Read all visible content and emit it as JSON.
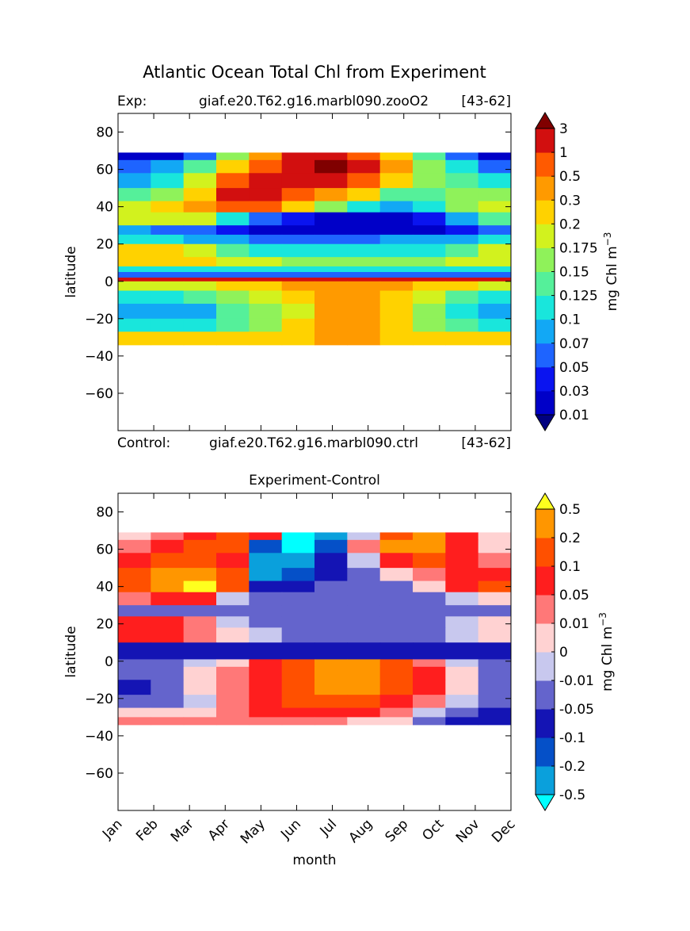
{
  "figure": {
    "title": "Atlantic Ocean Total Chl from Experiment",
    "exp_label": "Exp:",
    "exp_name": "giaf.e20.T62.g16.marbl090.zooO2",
    "exp_years": "[43-62]",
    "ctrl_label": "Control:",
    "ctrl_name": "giaf.e20.T62.g16.marbl090.ctrl",
    "ctrl_years": "[43-62]",
    "diff_title": "Experiment-Control"
  },
  "chart_data": [
    {
      "type": "heatmap",
      "title": "Atlantic Ocean Total Chl from Experiment",
      "subtitle": "giaf.e20.T62.g16.marbl090.zooO2 [43-62]",
      "xlabel": "",
      "ylabel": "latitude",
      "x_range_months": [
        1,
        12
      ],
      "ylim": [
        -80,
        90
      ],
      "yticks": [
        80,
        60,
        40,
        20,
        0,
        -20,
        -40,
        -60
      ],
      "data_lat_range": [
        -34,
        69
      ],
      "colorbar": {
        "label": "mg Chl m",
        "label_exponent": "−3",
        "levels": [
          "0.01",
          "0.03",
          "0.05",
          "0.07",
          "0.1",
          "0.125",
          "0.15",
          "0.175",
          "0.2",
          "0.3",
          "0.5",
          "1",
          "3"
        ],
        "colors": [
          "#000080",
          "#0000c8",
          "#0a14f0",
          "#1e64ff",
          "#12a8f5",
          "#19e6dc",
          "#55f09a",
          "#8ff25a",
          "#d2f21e",
          "#ffd200",
          "#ff9a00",
          "#ff5a00",
          "#d20f0f",
          "#800000"
        ],
        "extend": "both"
      },
      "lat_bands": [
        {
          "lat": [
            65,
            69
          ],
          "values": [
            1,
            1,
            3,
            7,
            10,
            12,
            12,
            11,
            9,
            6,
            3,
            1
          ]
        },
        {
          "lat": [
            58,
            65
          ],
          "values": [
            3,
            4,
            6,
            9,
            11,
            12,
            13,
            12,
            10,
            7,
            5,
            3
          ]
        },
        {
          "lat": [
            50,
            58
          ],
          "values": [
            4,
            5,
            8,
            11,
            12,
            12,
            12,
            11,
            9,
            7,
            6,
            5
          ]
        },
        {
          "lat": [
            43,
            50
          ],
          "values": [
            6,
            7,
            9,
            12,
            12,
            11,
            10,
            9,
            6,
            6,
            7,
            7
          ]
        },
        {
          "lat": [
            37,
            43
          ],
          "values": [
            8,
            9,
            10,
            11,
            11,
            9,
            7,
            5,
            4,
            5,
            7,
            8
          ]
        },
        {
          "lat": [
            30,
            37
          ],
          "values": [
            8,
            8,
            8,
            5,
            3,
            2,
            1,
            1,
            1,
            2,
            4,
            6
          ]
        },
        {
          "lat": [
            25,
            30
          ],
          "values": [
            4,
            3,
            3,
            2,
            1,
            1,
            1,
            1,
            1,
            1,
            2,
            3
          ]
        },
        {
          "lat": [
            20,
            25
          ],
          "values": [
            5,
            5,
            4,
            4,
            3,
            3,
            3,
            3,
            4,
            4,
            4,
            5
          ]
        },
        {
          "lat": [
            13,
            20
          ],
          "values": [
            9,
            9,
            8,
            6,
            5,
            5,
            5,
            5,
            5,
            5,
            6,
            8
          ]
        },
        {
          "lat": [
            8,
            13
          ],
          "values": [
            9,
            9,
            9,
            8,
            8,
            7,
            7,
            7,
            7,
            7,
            8,
            8
          ]
        },
        {
          "lat": [
            5,
            8
          ],
          "values": [
            5,
            5,
            5,
            5,
            5,
            5,
            5,
            5,
            5,
            5,
            5,
            5
          ]
        },
        {
          "lat": [
            2,
            5
          ],
          "values": [
            3,
            3,
            3,
            3,
            3,
            3,
            3,
            3,
            3,
            3,
            3,
            3
          ]
        },
        {
          "lat": [
            0,
            2
          ],
          "values": [
            12,
            12,
            12,
            12,
            12,
            12,
            12,
            12,
            12,
            12,
            12,
            12
          ]
        },
        {
          "lat": [
            -5,
            0
          ],
          "values": [
            8,
            8,
            8,
            9,
            9,
            10,
            10,
            10,
            10,
            9,
            9,
            8
          ]
        },
        {
          "lat": [
            -12,
            -5
          ],
          "values": [
            5,
            5,
            6,
            7,
            8,
            9,
            10,
            10,
            9,
            8,
            6,
            5
          ]
        },
        {
          "lat": [
            -20,
            -12
          ],
          "values": [
            4,
            4,
            4,
            6,
            7,
            8,
            10,
            10,
            9,
            7,
            5,
            4
          ]
        },
        {
          "lat": [
            -27,
            -20
          ],
          "values": [
            5,
            5,
            5,
            6,
            7,
            9,
            10,
            10,
            9,
            7,
            6,
            5
          ]
        },
        {
          "lat": [
            -34,
            -27
          ],
          "values": [
            9,
            9,
            9,
            9,
            9,
            9,
            10,
            10,
            9,
            9,
            9,
            9
          ]
        }
      ]
    },
    {
      "type": "heatmap",
      "title": "Experiment-Control",
      "subtitle": "giaf.e20.T62.g16.marbl090.ctrl [43-62]",
      "xlabel": "month",
      "ylabel": "latitude",
      "x_range_months": [
        1,
        12
      ],
      "xtick_labels": [
        "Jan",
        "Feb",
        "Mar",
        "Apr",
        "May",
        "Jun",
        "Jul",
        "Aug",
        "Sep",
        "Oct",
        "Nov",
        "Dec"
      ],
      "ylim": [
        -80,
        90
      ],
      "yticks": [
        80,
        60,
        40,
        20,
        0,
        -20,
        -40,
        -60
      ],
      "data_lat_range": [
        -34,
        69
      ],
      "colorbar": {
        "label": "mg Chl m",
        "label_exponent": "−3",
        "levels": [
          "-0.5",
          "-0.2",
          "-0.1",
          "-0.05",
          "-0.01",
          "0",
          "0.01",
          "0.05",
          "0.1",
          "0.2",
          "0.5"
        ],
        "colors": [
          "#00ffff",
          "#0aa0dc",
          "#0550c8",
          "#1414b4",
          "#6464cc",
          "#c8c8ee",
          "#ffd2d2",
          "#ff7878",
          "#ff1e1e",
          "#ff5000",
          "#ff9600",
          "#ffff1e"
        ],
        "extend": "both"
      },
      "lat_bands": [
        {
          "lat": [
            65,
            69
          ],
          "values": [
            6,
            7,
            8,
            9,
            8,
            0,
            1,
            5,
            9,
            10,
            8,
            6
          ]
        },
        {
          "lat": [
            58,
            65
          ],
          "values": [
            7,
            8,
            9,
            9,
            2,
            0,
            2,
            7,
            10,
            10,
            8,
            6
          ]
        },
        {
          "lat": [
            50,
            58
          ],
          "values": [
            8,
            9,
            9,
            8,
            1,
            1,
            3,
            5,
            8,
            9,
            8,
            7
          ]
        },
        {
          "lat": [
            43,
            50
          ],
          "values": [
            9,
            10,
            10,
            9,
            1,
            2,
            3,
            4,
            6,
            7,
            8,
            8
          ]
        },
        {
          "lat": [
            37,
            43
          ],
          "values": [
            9,
            10,
            11,
            9,
            3,
            3,
            4,
            4,
            4,
            6,
            8,
            9
          ]
        },
        {
          "lat": [
            30,
            37
          ],
          "values": [
            7,
            8,
            8,
            5,
            4,
            4,
            4,
            4,
            4,
            4,
            5,
            6
          ]
        },
        {
          "lat": [
            24,
            30
          ],
          "values": [
            4,
            4,
            4,
            4,
            4,
            4,
            4,
            4,
            4,
            4,
            4,
            4
          ]
        },
        {
          "lat": [
            18,
            24
          ],
          "values": [
            8,
            8,
            7,
            5,
            4,
            4,
            4,
            4,
            4,
            4,
            5,
            6
          ]
        },
        {
          "lat": [
            10,
            18
          ],
          "values": [
            8,
            8,
            7,
            6,
            5,
            4,
            4,
            4,
            4,
            4,
            5,
            6
          ]
        },
        {
          "lat": [
            5,
            10
          ],
          "values": [
            3,
            3,
            3,
            3,
            3,
            3,
            3,
            3,
            3,
            3,
            3,
            3
          ]
        },
        {
          "lat": [
            1,
            5
          ],
          "values": [
            3,
            3,
            3,
            3,
            3,
            3,
            3,
            3,
            3,
            3,
            3,
            3
          ]
        },
        {
          "lat": [
            -3,
            1
          ],
          "values": [
            4,
            4,
            5,
            6,
            8,
            9,
            10,
            10,
            9,
            7,
            5,
            4
          ]
        },
        {
          "lat": [
            -10,
            -3
          ],
          "values": [
            4,
            4,
            6,
            7,
            8,
            9,
            10,
            10,
            9,
            8,
            6,
            4
          ]
        },
        {
          "lat": [
            -18,
            -10
          ],
          "values": [
            3,
            4,
            6,
            7,
            8,
            9,
            10,
            10,
            9,
            8,
            6,
            4
          ]
        },
        {
          "lat": [
            -25,
            -18
          ],
          "values": [
            4,
            4,
            5,
            7,
            8,
            9,
            9,
            9,
            8,
            7,
            5,
            4
          ]
        },
        {
          "lat": [
            -30,
            -25
          ],
          "values": [
            6,
            6,
            6,
            7,
            8,
            8,
            8,
            8,
            7,
            5,
            4,
            3
          ]
        },
        {
          "lat": [
            -34,
            -30
          ],
          "values": [
            7,
            7,
            7,
            7,
            7,
            7,
            7,
            6,
            6,
            4,
            3,
            3
          ]
        }
      ]
    }
  ]
}
